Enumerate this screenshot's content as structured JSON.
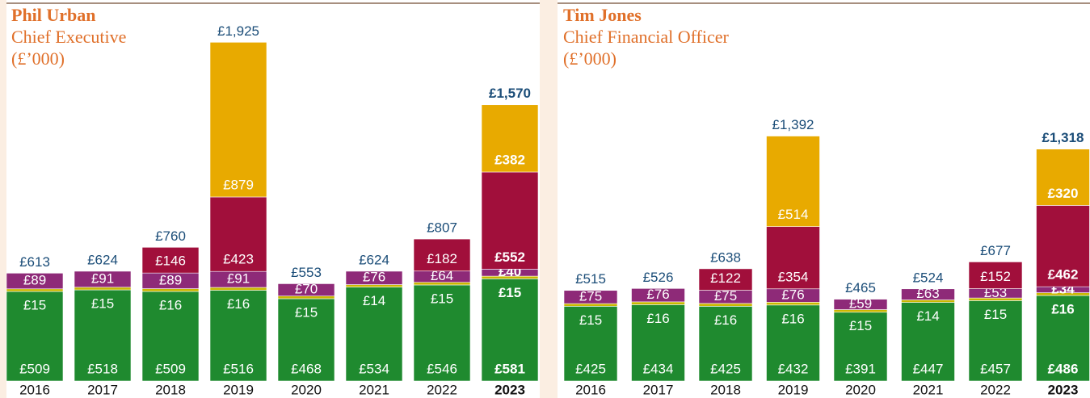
{
  "chart_data": [
    {
      "type": "bar",
      "stacked": true,
      "title": "Phil Urban",
      "subtitle": "Chief Executive",
      "unit": "(£’000)",
      "categories": [
        "2016",
        "2017",
        "2018",
        "2019",
        "2020",
        "2021",
        "2022",
        "2023"
      ],
      "highlight_category": "2023",
      "series": [
        {
          "color": "#1f8a2f",
          "values": [
            509,
            518,
            509,
            516,
            468,
            534,
            546,
            581
          ],
          "value_labels": [
            "£509",
            "£518",
            "£509",
            "£516",
            "£468",
            "£534",
            "£546",
            "£581"
          ]
        },
        {
          "color": "#c9b800",
          "values": [
            15,
            15,
            16,
            16,
            15,
            14,
            15,
            15
          ],
          "value_labels": [
            "£15",
            "£15",
            "£16",
            "£16",
            "£15",
            "£14",
            "£15",
            "£15"
          ]
        },
        {
          "color": "#8e2a78",
          "values": [
            89,
            91,
            89,
            91,
            70,
            76,
            64,
            40
          ],
          "value_labels": [
            "£89",
            "£91",
            "£89",
            "£91",
            "£70",
            "£76",
            "£64",
            "£40"
          ]
        },
        {
          "color": "#a10f3b",
          "values": [
            null,
            null,
            146,
            423,
            null,
            null,
            182,
            552
          ],
          "value_labels": [
            null,
            null,
            "£146",
            "£423",
            null,
            null,
            "£182",
            "£552"
          ]
        },
        {
          "color": "#e8aa00",
          "values": [
            null,
            null,
            null,
            879,
            null,
            null,
            null,
            382
          ],
          "value_labels": [
            null,
            null,
            null,
            "£879",
            null,
            null,
            null,
            "£382"
          ]
        }
      ],
      "totals": [
        613,
        624,
        760,
        1925,
        553,
        624,
        807,
        1570
      ],
      "total_labels": [
        "£613",
        "£624",
        "£760",
        "£1,925",
        "£553",
        "£624",
        "£807",
        "£1,570"
      ]
    },
    {
      "type": "bar",
      "stacked": true,
      "title": "Tim Jones",
      "subtitle": "Chief Financial Officer",
      "unit": "(£’000)",
      "categories": [
        "2016",
        "2017",
        "2018",
        "2019",
        "2020",
        "2021",
        "2022",
        "2023"
      ],
      "highlight_category": "2023",
      "series": [
        {
          "color": "#1f8a2f",
          "values": [
            425,
            434,
            425,
            432,
            391,
            447,
            457,
            486
          ],
          "value_labels": [
            "£425",
            "£434",
            "£425",
            "£432",
            "£391",
            "£447",
            "£457",
            "£486"
          ]
        },
        {
          "color": "#c9b800",
          "values": [
            15,
            16,
            16,
            16,
            15,
            14,
            15,
            16
          ],
          "value_labels": [
            "£15",
            "£16",
            "£16",
            "£16",
            "£15",
            "£14",
            "£15",
            "£16"
          ]
        },
        {
          "color": "#8e2a78",
          "values": [
            75,
            76,
            75,
            76,
            59,
            63,
            53,
            34
          ],
          "value_labels": [
            "£75",
            "£76",
            "£75",
            "£76",
            "£59",
            "£63",
            "£53",
            "£34"
          ]
        },
        {
          "color": "#a10f3b",
          "values": [
            null,
            null,
            122,
            354,
            null,
            null,
            152,
            462
          ],
          "value_labels": [
            null,
            null,
            "£122",
            "£354",
            null,
            null,
            "£152",
            "£462"
          ]
        },
        {
          "color": "#e8aa00",
          "values": [
            null,
            null,
            null,
            514,
            null,
            null,
            null,
            320
          ],
          "value_labels": [
            null,
            null,
            null,
            "£514",
            null,
            null,
            null,
            "£320"
          ]
        }
      ],
      "totals": [
        515,
        526,
        638,
        1392,
        465,
        524,
        677,
        1318
      ],
      "total_labels": [
        "£515",
        "£526",
        "£638",
        "£1,392",
        "£465",
        "£524",
        "£677",
        "£1,318"
      ]
    }
  ]
}
